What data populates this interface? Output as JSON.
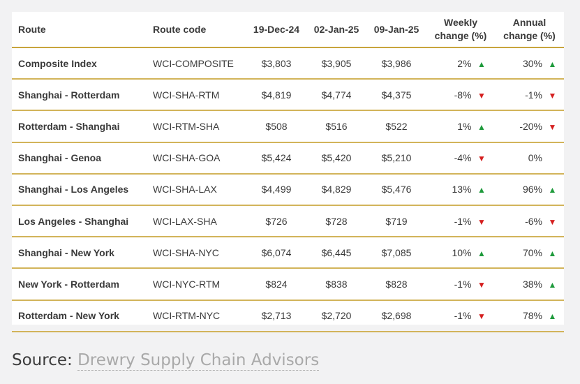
{
  "table": {
    "headers": {
      "route": "Route",
      "route_code": "Route code",
      "date1": "19-Dec-24",
      "date2": "02-Jan-25",
      "date3": "09-Jan-25",
      "weekly_line1": "Weekly",
      "weekly_line2": "change (%)",
      "annual_line1": "Annual",
      "annual_line2": "change (%)"
    },
    "rows": [
      {
        "route": "Composite Index",
        "code": "WCI-COMPOSITE",
        "d1": "$3,803",
        "d2": "$3,905",
        "d3": "$3,986",
        "weekly": "2%",
        "weekly_dir": "up",
        "annual": "30%",
        "annual_dir": "up"
      },
      {
        "route": "Shanghai - Rotterdam",
        "code": "WCI-SHA-RTM",
        "d1": "$4,819",
        "d2": "$4,774",
        "d3": "$4,375",
        "weekly": "-8%",
        "weekly_dir": "down",
        "annual": "-1%",
        "annual_dir": "down"
      },
      {
        "route": "Rotterdam - Shanghai",
        "code": "WCI-RTM-SHA",
        "d1": "$508",
        "d2": "$516",
        "d3": "$522",
        "weekly": "1%",
        "weekly_dir": "up",
        "annual": "-20%",
        "annual_dir": "down"
      },
      {
        "route": "Shanghai - Genoa",
        "code": "WCI-SHA-GOA",
        "d1": "$5,424",
        "d2": "$5,420",
        "d3": "$5,210",
        "weekly": "-4%",
        "weekly_dir": "down",
        "annual": "0%",
        "annual_dir": "none"
      },
      {
        "route": "Shanghai - Los Angeles",
        "code": "WCI-SHA-LAX",
        "d1": "$4,499",
        "d2": "$4,829",
        "d3": "$5,476",
        "weekly": "13%",
        "weekly_dir": "up",
        "annual": "96%",
        "annual_dir": "up"
      },
      {
        "route": "Los Angeles - Shanghai",
        "code": "WCI-LAX-SHA",
        "d1": "$726",
        "d2": "$728",
        "d3": "$719",
        "weekly": "-1%",
        "weekly_dir": "down",
        "annual": "-6%",
        "annual_dir": "down"
      },
      {
        "route": "Shanghai - New York",
        "code": "WCI-SHA-NYC",
        "d1": "$6,074",
        "d2": "$6,445",
        "d3": "$7,085",
        "weekly": "10%",
        "weekly_dir": "up",
        "annual": "70%",
        "annual_dir": "up"
      },
      {
        "route": "New York - Rotterdam",
        "code": "WCI-NYC-RTM",
        "d1": "$824",
        "d2": "$838",
        "d3": "$828",
        "weekly": "-1%",
        "weekly_dir": "down",
        "annual": "38%",
        "annual_dir": "up"
      },
      {
        "route": "Rotterdam - New York",
        "code": "WCI-RTM-NYC",
        "d1": "$2,713",
        "d2": "$2,720",
        "d3": "$2,698",
        "weekly": "-1%",
        "weekly_dir": "down",
        "annual": "78%",
        "annual_dir": "up"
      }
    ]
  },
  "source": {
    "label": "Source:",
    "link_text": "Drewry Supply Chain Advisors"
  },
  "colors": {
    "up": "#1e9a3b",
    "down": "#d51f1f",
    "rule": "#d2b45a"
  },
  "icons": {
    "up": "triangle-up-icon",
    "down": "triangle-down-icon"
  }
}
